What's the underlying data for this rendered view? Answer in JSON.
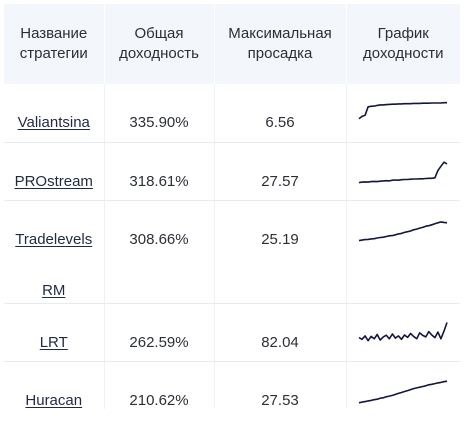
{
  "table": {
    "headers": {
      "name": [
        "Название",
        "стратегии"
      ],
      "return": [
        "Общая",
        "доходность"
      ],
      "drawdown": [
        "Максимальная",
        "просадка"
      ],
      "chart": [
        "График",
        "доходности"
      ]
    },
    "rows": [
      {
        "name": "Valiantsina",
        "return": "335.90%",
        "drawdown": "6.56",
        "spark": [
          0.3,
          0.4,
          0.45,
          0.8,
          0.82,
          0.83,
          0.86,
          0.88,
          0.88,
          0.89,
          0.9,
          0.91,
          0.91,
          0.92,
          0.92,
          0.93,
          0.93,
          0.93,
          0.94,
          0.94,
          0.94,
          0.95,
          0.95,
          0.95,
          0.96,
          0.96,
          0.96,
          0.96,
          0.97,
          0.97
        ]
      },
      {
        "name": "PROstream",
        "return": "318.61%",
        "drawdown": "27.57",
        "spark": [
          0.1,
          0.12,
          0.13,
          0.12,
          0.14,
          0.15,
          0.14,
          0.16,
          0.17,
          0.18,
          0.17,
          0.2,
          0.21,
          0.2,
          0.22,
          0.23,
          0.23,
          0.24,
          0.25,
          0.25,
          0.26,
          0.26,
          0.27,
          0.28,
          0.28,
          0.3,
          0.6,
          0.78,
          0.95,
          0.88
        ]
      },
      {
        "name_line1": "Tradelevels",
        "name_line2": "RM",
        "return": "308.66%",
        "drawdown": "25.19",
        "spark": [
          0.1,
          0.12,
          0.14,
          0.15,
          0.17,
          0.18,
          0.21,
          0.23,
          0.24,
          0.27,
          0.3,
          0.31,
          0.34,
          0.38,
          0.4,
          0.44,
          0.47,
          0.5,
          0.55,
          0.58,
          0.62,
          0.65,
          0.7,
          0.72,
          0.76,
          0.8,
          0.84,
          0.88,
          0.86,
          0.84
        ]
      },
      {
        "name": "LRT",
        "return": "262.59%",
        "drawdown": "82.04",
        "spark": [
          0.35,
          0.28,
          0.42,
          0.22,
          0.4,
          0.3,
          0.48,
          0.25,
          0.38,
          0.45,
          0.3,
          0.5,
          0.33,
          0.42,
          0.28,
          0.46,
          0.36,
          0.52,
          0.4,
          0.3,
          0.55,
          0.44,
          0.38,
          0.6,
          0.46,
          0.35,
          0.58,
          0.3,
          0.62,
          0.98
        ]
      },
      {
        "name": "Huracan",
        "return": "210.62%",
        "drawdown": "27.53",
        "spark": [
          0.05,
          0.08,
          0.1,
          0.13,
          0.15,
          0.18,
          0.2,
          0.24,
          0.26,
          0.3,
          0.33,
          0.36,
          0.4,
          0.44,
          0.48,
          0.52,
          0.56,
          0.6,
          0.64,
          0.67,
          0.7,
          0.73,
          0.76,
          0.8,
          0.82,
          0.85,
          0.88,
          0.9,
          0.93,
          0.95
        ]
      }
    ],
    "spark_color": "#12163f"
  }
}
